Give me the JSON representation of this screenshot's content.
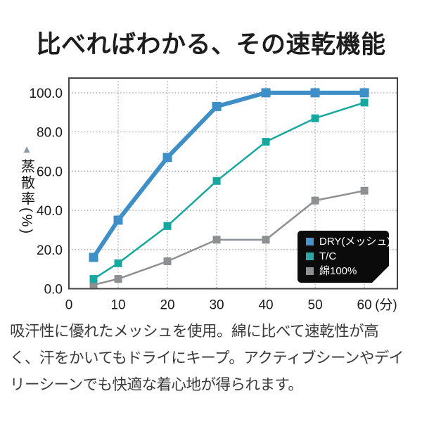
{
  "header": {
    "title": "比べればわかる、その速乾機能"
  },
  "chart": {
    "y_axis": {
      "arrow_icon": "▲",
      "label": "蒸散率(%)"
    },
    "x_axis": {
      "unit_suffix": "(分)"
    }
  },
  "chart_data": {
    "type": "line",
    "title": "比べればわかる、その速乾機能",
    "ylabel": "蒸散率(%)",
    "xlabel_unit": "分",
    "x": [
      5,
      10,
      20,
      30,
      40,
      50,
      60
    ],
    "series": [
      {
        "name": "DRY(メッシュ)",
        "color": "#3e8fc7",
        "line_width": 6,
        "marker_size": 13,
        "values": [
          16,
          35,
          67,
          93,
          100,
          100,
          100
        ]
      },
      {
        "name": "T/C",
        "color": "#16a79e",
        "line_width": 2.5,
        "marker_size": 11,
        "values": [
          5,
          13,
          32,
          55,
          75,
          87,
          95
        ]
      },
      {
        "name": "綿100%",
        "color": "#8d9093",
        "line_width": 2.5,
        "marker_size": 11,
        "values": [
          2,
          5,
          14,
          25,
          25,
          45,
          50
        ]
      }
    ],
    "xlim": [
      0,
      66.7
    ],
    "ylim": [
      0,
      107.5
    ],
    "x_ticks": [
      0,
      10,
      20,
      30,
      40,
      50,
      60
    ],
    "x_tick_labels": [
      "0",
      "10",
      "20",
      "30",
      "40",
      "50",
      "60"
    ],
    "y_ticks": [
      0,
      20,
      40,
      60,
      80,
      100
    ],
    "y_tick_labels": [
      "0.0",
      "20.0",
      "40.0",
      "60.0",
      "80.0",
      "100.0"
    ],
    "grid": "dotted",
    "legend_position": "inside-bottom-right",
    "legend_bg": "#0b0b0b"
  },
  "legend": {
    "items": [
      {
        "label": "DRY(メッシュ)",
        "color": "#4a94cc"
      },
      {
        "label": "T/C",
        "color": "#2aa8a2"
      },
      {
        "label": "綿100%",
        "color": "#8e9194"
      }
    ]
  },
  "description": {
    "lines": [
      "吸汗性に優れたメッシュを使用。綿に比べて速乾性が高",
      "く、汗をかいてもドライにキープ。アクティブシーンやデイ",
      "リーシーンでも快適な着心地が得られます。"
    ]
  }
}
